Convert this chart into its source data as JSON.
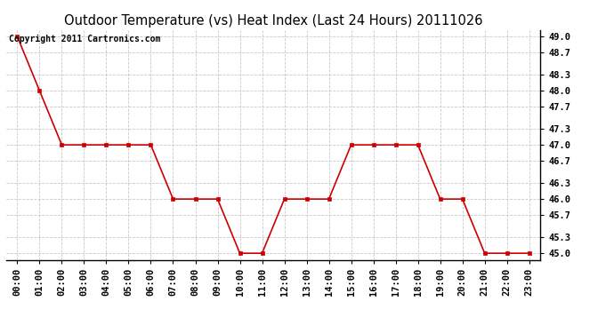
{
  "title": "Outdoor Temperature (vs) Heat Index (Last 24 Hours) 20111026",
  "copyright_text": "Copyright 2011 Cartronics.com",
  "x_labels": [
    "00:00",
    "01:00",
    "02:00",
    "03:00",
    "04:00",
    "05:00",
    "06:00",
    "07:00",
    "08:00",
    "09:00",
    "10:00",
    "11:00",
    "12:00",
    "13:00",
    "14:00",
    "15:00",
    "16:00",
    "17:00",
    "18:00",
    "19:00",
    "20:00",
    "21:00",
    "22:00",
    "23:00"
  ],
  "y_values": [
    49.0,
    48.0,
    47.0,
    47.0,
    47.0,
    47.0,
    47.0,
    46.0,
    46.0,
    46.0,
    45.0,
    45.0,
    46.0,
    46.0,
    46.0,
    47.0,
    47.0,
    47.0,
    47.0,
    46.0,
    46.0,
    45.0,
    45.0,
    45.0
  ],
  "y_min": 45.0,
  "y_max": 49.0,
  "y_ticks": [
    45.0,
    45.3,
    45.7,
    46.0,
    46.3,
    46.7,
    47.0,
    47.3,
    47.7,
    48.0,
    48.3,
    48.7,
    49.0
  ],
  "line_color": "#cc0000",
  "marker_color": "#cc0000",
  "marker": "s",
  "bg_color": "#ffffff",
  "plot_bg_color": "#ffffff",
  "grid_color": "#c8c8c8",
  "title_fontsize": 10.5,
  "tick_fontsize": 7.5,
  "copyright_fontsize": 7
}
